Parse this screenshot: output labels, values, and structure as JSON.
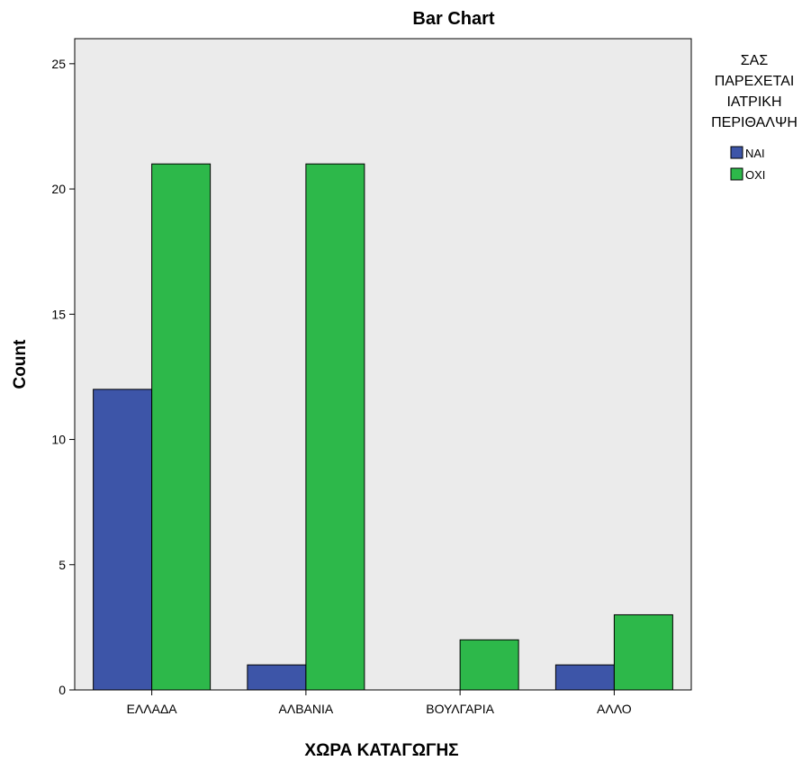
{
  "chart_data": {
    "type": "bar",
    "title": "Bar Chart",
    "xlabel": "ΧΩΡΑ ΚΑΤΑΓΩΓΗΣ",
    "ylabel": "Count",
    "categories": [
      "ΕΛΛΑΔΑ",
      "ΑΛΒΑΝΙΑ",
      "ΒΟΥΛΓΑΡΙΑ",
      "ΑΛΛΟ"
    ],
    "series": [
      {
        "name": "ΝΑΙ",
        "color": "#3d55a8",
        "values": [
          12,
          1,
          0,
          1
        ]
      },
      {
        "name": "ΟΧΙ",
        "color": "#2db84a",
        "values": [
          21,
          21,
          2,
          3
        ]
      }
    ],
    "ylim": [
      0,
      26
    ],
    "yticks": [
      "0",
      "5",
      "10",
      "15",
      "20",
      "25"
    ],
    "grid": false,
    "plot_background": "#ebebeb",
    "legend": {
      "title_lines": [
        "ΣΑΣ",
        "ΠΑΡΕΧΕΤΑΙ",
        "ΙΑΤΡΙΚΗ",
        "ΠΕΡΙΘΑΛΨΗ"
      ],
      "placement": "right"
    }
  }
}
